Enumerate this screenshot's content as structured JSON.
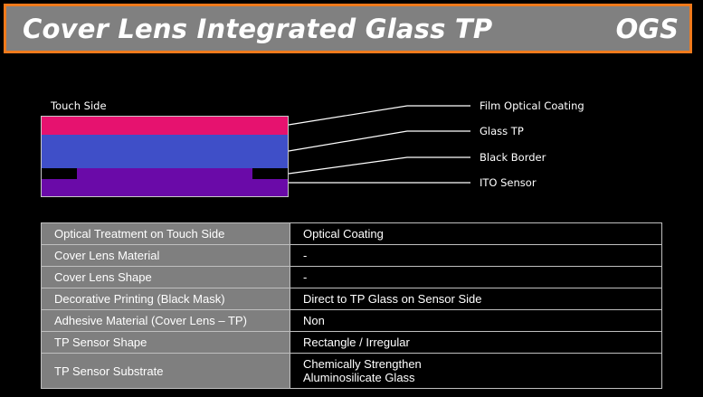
{
  "header": {
    "title": "Cover Lens Integrated Glass TP",
    "tag": "OGS"
  },
  "diagram": {
    "top_label": "Touch Side",
    "layers": {
      "film": {
        "label": "Film Optical Coating",
        "color": "#e6126f"
      },
      "glass": {
        "label": "Glass TP",
        "color": "#3f4fc8"
      },
      "border": {
        "label": "Black Border",
        "color": "#000000"
      },
      "ito": {
        "label": "ITO Sensor",
        "color": "#6a0aa8"
      }
    }
  },
  "spec_table": {
    "rows": [
      {
        "key": "Optical Treatment on Touch Side",
        "value": "Optical Coating"
      },
      {
        "key": "Cover Lens Material",
        "value": "-"
      },
      {
        "key": "Cover Lens Shape",
        "value": "-"
      },
      {
        "key": "Decorative Printing (Black Mask)",
        "value": "Direct to TP Glass on Sensor Side"
      },
      {
        "key": "Adhesive Material (Cover Lens – TP)",
        "value": "Non"
      },
      {
        "key": "TP Sensor Shape",
        "value": "Rectangle / Irregular"
      },
      {
        "key": "TP Sensor Substrate",
        "value_line1": "Chemically Strengthen",
        "value_line2": "Aluminosilicate Glass"
      }
    ]
  },
  "colors": {
    "accent_border": "#f07a1c",
    "header_bg": "#808080",
    "key_cell_bg": "#7f7f7f"
  }
}
